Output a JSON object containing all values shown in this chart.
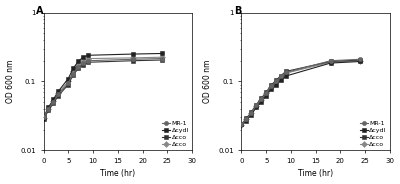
{
  "panel_A": {
    "label": "A",
    "time": [
      0,
      1,
      2,
      3,
      5,
      6,
      7,
      8,
      9,
      18,
      24
    ],
    "MR1": [
      0.03,
      0.04,
      0.05,
      0.065,
      0.095,
      0.13,
      0.16,
      0.185,
      0.2,
      0.21,
      0.215
    ],
    "cydI": [
      0.03,
      0.042,
      0.055,
      0.072,
      0.11,
      0.155,
      0.195,
      0.225,
      0.24,
      0.25,
      0.255
    ],
    "cco1": [
      0.028,
      0.038,
      0.048,
      0.062,
      0.09,
      0.125,
      0.155,
      0.175,
      0.19,
      0.2,
      0.205
    ],
    "cco2": [
      0.029,
      0.04,
      0.052,
      0.068,
      0.1,
      0.14,
      0.175,
      0.2,
      0.215,
      0.22,
      0.225
    ]
  },
  "panel_B": {
    "label": "B",
    "time": [
      0,
      1,
      2,
      3,
      4,
      5,
      6,
      7,
      8,
      9,
      18,
      24
    ],
    "MR1": [
      0.024,
      0.028,
      0.035,
      0.045,
      0.055,
      0.068,
      0.085,
      0.1,
      0.118,
      0.135,
      0.2,
      0.21
    ],
    "cydI": [
      0.024,
      0.027,
      0.033,
      0.042,
      0.05,
      0.062,
      0.077,
      0.09,
      0.105,
      0.12,
      0.185,
      0.195
    ],
    "cco1": [
      0.024,
      0.029,
      0.036,
      0.046,
      0.057,
      0.07,
      0.088,
      0.104,
      0.122,
      0.14,
      0.195,
      0.205
    ],
    "cco2": [
      0.023,
      0.028,
      0.035,
      0.044,
      0.054,
      0.067,
      0.083,
      0.098,
      0.115,
      0.132,
      0.19,
      0.2
    ]
  },
  "legend_labels": [
    "MR-1",
    "ΔcydI",
    "Δcco",
    "Δcco"
  ],
  "markers": [
    "o",
    "s",
    "s",
    "D"
  ],
  "colors": [
    "#666666",
    "#222222",
    "#333333",
    "#888888"
  ],
  "linestyles": [
    "-",
    "-",
    "-",
    "-"
  ],
  "ylabel": "OD 600 nm",
  "xlabel": "Time (hr)",
  "ylim_log": [
    0.01,
    1.0
  ],
  "xlim": [
    0,
    30
  ],
  "xticks": [
    0,
    5,
    10,
    15,
    20,
    25,
    30
  ],
  "yticks_log": [
    0.01,
    0.1,
    1
  ],
  "markersize": 3.0,
  "linewidth": 0.8,
  "fontsize_label": 5.5,
  "fontsize_tick": 5.0,
  "fontsize_legend": 4.5,
  "fontsize_panel": 7,
  "bg_color": "#ffffff"
}
